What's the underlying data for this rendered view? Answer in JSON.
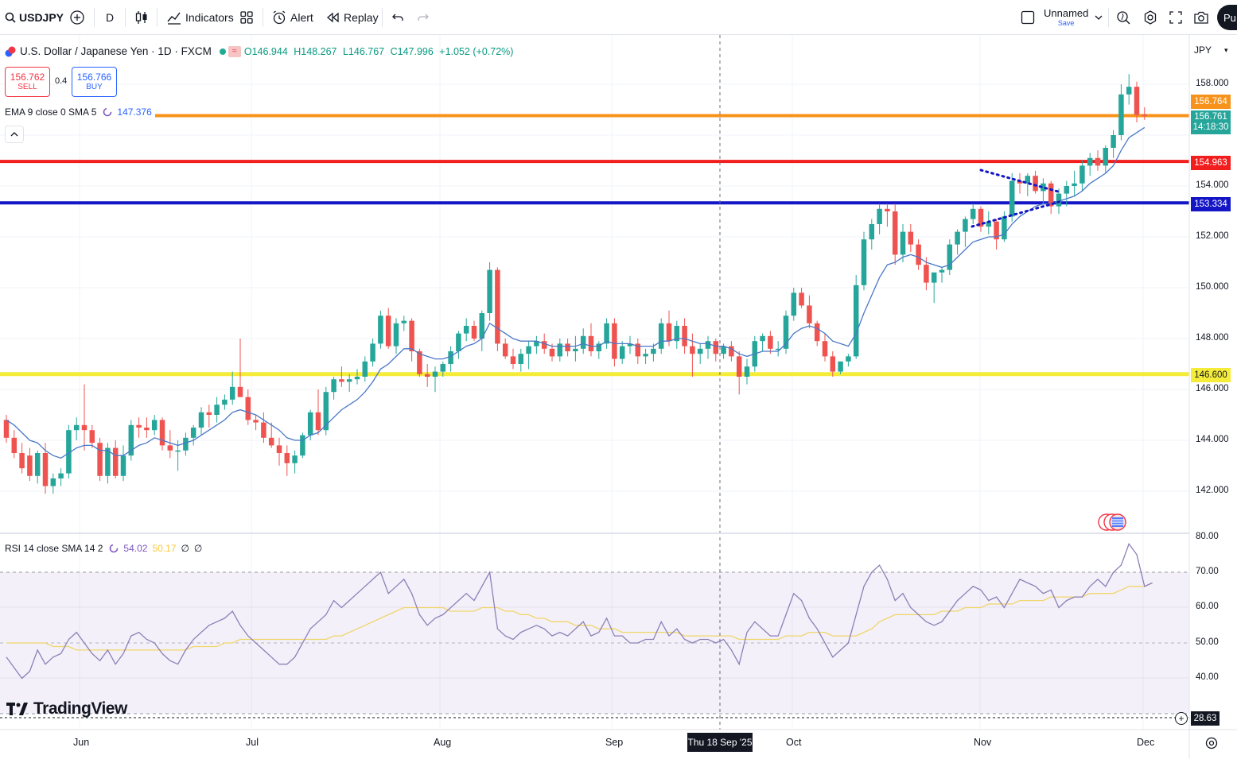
{
  "toolbar": {
    "symbol": "USDJPY",
    "interval": "D",
    "indicators": "Indicators",
    "alert": "Alert",
    "replay": "Replay",
    "layout_name": "Unnamed",
    "layout_save": "Save",
    "publish": "Pu"
  },
  "legend": {
    "title": "U.S. Dollar / Japanese Yen · 1D · FXCM",
    "badge": "≈",
    "open": "O146.944",
    "high": "H148.267",
    "low": "L146.767",
    "close": "C147.996",
    "change": "+1.052 (+0.72%)"
  },
  "trade": {
    "sell_price": "156.762",
    "sell_label": "SELL",
    "spread": "0.4",
    "buy_price": "156.766",
    "buy_label": "BUY"
  },
  "ema_legend": {
    "text": "EMA 9 close 0 SMA 5",
    "value": "147.376"
  },
  "rsi_legend": {
    "text": "RSI 14 close SMA 14 2",
    "rsi": "54.02",
    "sma": "50.17",
    "z1": "∅",
    "z2": "∅"
  },
  "watermark": "TradingView",
  "price_axis": {
    "currency": "JPY",
    "ticks": [
      "158.000",
      "154.000",
      "152.000",
      "150.000",
      "148.000",
      "146.000",
      "144.000",
      "142.000"
    ],
    "rsi_ticks": [
      "80.00",
      "70.00",
      "60.00",
      "50.00",
      "40.00"
    ],
    "tags": {
      "orange": "156.764",
      "current": "156.761",
      "countdown": "14:18:30",
      "red": "154.963",
      "blue": "153.334",
      "yellow": "146.600",
      "rsi_low": "28.63"
    }
  },
  "time_axis": {
    "labels": [
      "Jun",
      "Jul",
      "Aug",
      "Sep",
      "Oct",
      "Nov",
      "Dec"
    ],
    "crosshair": "Thu 18 Sep '25"
  },
  "colors": {
    "up": "#26a69a",
    "down": "#ef5350",
    "orange_line": "#f7931a",
    "red_line": "#f21d1d",
    "blue_line": "#1416c6",
    "yellow_line": "#f5ec3a",
    "ema": "#4a78c8",
    "rsi": "#8e7fb7",
    "rsi_sma": "#f0d66a"
  },
  "chart_data": {
    "type": "candlestick",
    "symbol": "USDJPY",
    "timeframe": "1D",
    "ylim": [
      141,
      159
    ],
    "horizontal_levels": [
      {
        "price": 156.764,
        "color": "orange"
      },
      {
        "price": 154.963,
        "color": "red"
      },
      {
        "price": 153.334,
        "color": "blue"
      },
      {
        "price": 146.6,
        "color": "yellow"
      }
    ],
    "x_labels": [
      "Jun",
      "Jul",
      "Aug",
      "Sep",
      "Oct",
      "Nov",
      "Dec"
    ],
    "candles": [
      [
        144.8,
        145.0,
        143.9,
        144.1
      ],
      [
        144.1,
        144.4,
        143.3,
        143.5
      ],
      [
        143.5,
        143.9,
        142.7,
        142.9
      ],
      [
        143.4,
        143.7,
        142.4,
        142.6
      ],
      [
        142.6,
        143.6,
        142.3,
        143.5
      ],
      [
        143.5,
        143.9,
        141.9,
        142.2
      ],
      [
        142.2,
        142.7,
        141.9,
        142.5
      ],
      [
        142.5,
        142.9,
        142.2,
        142.7
      ],
      [
        142.7,
        144.6,
        142.5,
        144.4
      ],
      [
        144.4,
        144.9,
        144.0,
        144.6
      ],
      [
        144.6,
        146.2,
        143.6,
        144.4
      ],
      [
        144.4,
        144.6,
        143.7,
        143.9
      ],
      [
        143.9,
        144.1,
        142.4,
        142.6
      ],
      [
        142.6,
        143.9,
        142.3,
        143.7
      ],
      [
        143.7,
        144.0,
        142.5,
        142.6
      ],
      [
        142.6,
        143.8,
        142.4,
        143.4
      ],
      [
        143.4,
        144.8,
        143.2,
        144.6
      ],
      [
        144.6,
        144.9,
        144.1,
        144.5
      ],
      [
        144.5,
        144.9,
        144.1,
        144.4
      ],
      [
        144.4,
        145.0,
        144.2,
        144.8
      ],
      [
        144.8,
        144.9,
        143.6,
        143.8
      ],
      [
        143.8,
        144.4,
        143.3,
        143.6
      ],
      [
        143.6,
        144.0,
        142.8,
        143.6
      ],
      [
        143.6,
        144.3,
        143.4,
        144.1
      ],
      [
        144.1,
        144.6,
        143.8,
        144.5
      ],
      [
        144.5,
        145.3,
        144.2,
        145.1
      ],
      [
        145.1,
        145.4,
        144.5,
        145.0
      ],
      [
        145.0,
        145.7,
        144.7,
        145.4
      ],
      [
        145.4,
        145.8,
        145.2,
        145.6
      ],
      [
        145.6,
        146.7,
        145.4,
        146.1
      ],
      [
        146.1,
        148.0,
        145.8,
        145.7
      ],
      [
        145.7,
        146.0,
        144.6,
        144.8
      ],
      [
        144.8,
        145.0,
        144.4,
        144.7
      ],
      [
        144.7,
        145.1,
        143.9,
        144.1
      ],
      [
        144.1,
        144.7,
        143.7,
        143.8
      ],
      [
        143.8,
        144.1,
        143.0,
        143.5
      ],
      [
        143.5,
        143.8,
        142.6,
        143.1
      ],
      [
        143.1,
        143.6,
        142.7,
        143.4
      ],
      [
        143.4,
        144.3,
        143.3,
        144.2
      ],
      [
        144.2,
        145.2,
        144.0,
        145.1
      ],
      [
        145.1,
        146.0,
        144.2,
        144.4
      ],
      [
        144.4,
        146.1,
        144.2,
        145.9
      ],
      [
        145.9,
        146.5,
        145.6,
        146.4
      ],
      [
        146.4,
        146.9,
        146.1,
        146.3
      ],
      [
        146.3,
        146.6,
        145.9,
        146.4
      ],
      [
        146.4,
        146.8,
        146.2,
        146.5
      ],
      [
        146.5,
        147.3,
        146.3,
        147.1
      ],
      [
        147.1,
        148.0,
        146.9,
        147.8
      ],
      [
        147.8,
        149.1,
        147.6,
        148.9
      ],
      [
        148.9,
        149.2,
        147.6,
        147.7
      ],
      [
        147.7,
        148.8,
        147.4,
        148.6
      ],
      [
        148.6,
        148.9,
        148.3,
        148.7
      ],
      [
        148.7,
        148.8,
        147.1,
        147.5
      ],
      [
        147.5,
        147.6,
        146.5,
        146.6
      ],
      [
        146.6,
        147.0,
        146.1,
        146.5
      ],
      [
        146.5,
        146.9,
        145.9,
        146.7
      ],
      [
        146.7,
        147.1,
        146.5,
        147.0
      ],
      [
        147.0,
        147.7,
        146.7,
        147.5
      ],
      [
        147.5,
        148.3,
        147.2,
        148.2
      ],
      [
        148.2,
        148.8,
        147.9,
        148.5
      ],
      [
        148.5,
        148.7,
        147.9,
        148.0
      ],
      [
        148.0,
        149.1,
        147.5,
        149.0
      ],
      [
        149.0,
        151.0,
        148.7,
        150.7
      ],
      [
        150.7,
        150.8,
        147.5,
        147.8
      ],
      [
        147.8,
        148.0,
        147.2,
        147.3
      ],
      [
        147.3,
        147.6,
        146.8,
        147.0
      ],
      [
        147.0,
        147.6,
        146.7,
        147.4
      ],
      [
        147.4,
        147.9,
        146.8,
        147.7
      ],
      [
        147.7,
        148.1,
        147.4,
        147.9
      ],
      [
        147.9,
        148.2,
        147.4,
        147.6
      ],
      [
        147.6,
        147.8,
        147.1,
        147.3
      ],
      [
        147.3,
        148.0,
        147.1,
        147.8
      ],
      [
        147.8,
        148.0,
        147.3,
        147.5
      ],
      [
        147.5,
        148.1,
        147.1,
        147.6
      ],
      [
        147.6,
        148.4,
        147.4,
        148.1
      ],
      [
        148.1,
        148.6,
        147.3,
        147.5
      ],
      [
        147.5,
        147.9,
        147.2,
        147.8
      ],
      [
        147.8,
        148.8,
        147.6,
        148.6
      ],
      [
        148.6,
        148.8,
        146.9,
        147.2
      ],
      [
        147.2,
        147.9,
        147.0,
        147.7
      ],
      [
        147.7,
        148.1,
        147.4,
        147.8
      ],
      [
        147.8,
        148.0,
        147.0,
        147.3
      ],
      [
        147.3,
        147.6,
        147.0,
        147.4
      ],
      [
        147.4,
        147.8,
        147.1,
        147.6
      ],
      [
        147.6,
        148.8,
        147.4,
        148.6
      ],
      [
        148.6,
        149.1,
        147.7,
        147.9
      ],
      [
        147.9,
        148.7,
        147.6,
        148.5
      ],
      [
        148.5,
        148.8,
        147.4,
        147.7
      ],
      [
        147.7,
        148.2,
        146.5,
        147.4
      ],
      [
        147.4,
        147.8,
        147.0,
        147.6
      ],
      [
        147.6,
        148.1,
        147.2,
        147.9
      ],
      [
        147.9,
        148.0,
        147.1,
        147.4
      ],
      [
        147.4,
        147.8,
        147.2,
        147.7
      ],
      [
        147.7,
        147.9,
        147.1,
        147.3
      ],
      [
        147.3,
        147.5,
        145.8,
        146.5
      ],
      [
        146.5,
        147.2,
        146.2,
        146.9
      ],
      [
        146.9,
        148.1,
        146.7,
        147.9
      ],
      [
        147.9,
        148.2,
        147.5,
        148.1
      ],
      [
        148.1,
        148.3,
        147.4,
        147.6
      ],
      [
        147.6,
        147.9,
        147.3,
        147.6
      ],
      [
        147.6,
        149.1,
        147.4,
        148.9
      ],
      [
        148.9,
        150.0,
        148.7,
        149.8
      ],
      [
        149.8,
        150.0,
        149.2,
        149.3
      ],
      [
        149.3,
        149.7,
        148.4,
        148.6
      ],
      [
        148.6,
        148.7,
        147.7,
        147.9
      ],
      [
        147.9,
        148.2,
        147.1,
        147.3
      ],
      [
        147.3,
        147.5,
        146.5,
        146.7
      ],
      [
        146.7,
        147.1,
        146.6,
        147.1
      ],
      [
        147.1,
        147.4,
        146.9,
        147.3
      ],
      [
        147.3,
        150.5,
        147.2,
        150.1
      ],
      [
        150.1,
        152.2,
        149.9,
        151.9
      ],
      [
        151.9,
        152.7,
        151.5,
        152.5
      ],
      [
        152.5,
        153.3,
        152.1,
        153.1
      ],
      [
        153.1,
        153.3,
        152.4,
        153.0
      ],
      [
        153.0,
        153.3,
        150.9,
        151.3
      ],
      [
        151.3,
        152.5,
        151.0,
        152.2
      ],
      [
        152.2,
        152.5,
        151.4,
        151.7
      ],
      [
        151.7,
        151.9,
        150.7,
        150.9
      ],
      [
        150.9,
        151.2,
        149.9,
        150.2
      ],
      [
        150.2,
        150.6,
        149.4,
        150.6
      ],
      [
        150.6,
        150.8,
        150.2,
        150.7
      ],
      [
        150.7,
        151.9,
        150.5,
        151.7
      ],
      [
        151.7,
        152.3,
        151.3,
        152.2
      ],
      [
        152.2,
        152.8,
        151.6,
        152.7
      ],
      [
        152.7,
        153.3,
        152.5,
        153.1
      ],
      [
        153.1,
        153.2,
        152.2,
        152.4
      ],
      [
        152.4,
        153.0,
        152.1,
        152.6
      ],
      [
        152.6,
        152.7,
        151.5,
        151.9
      ],
      [
        151.9,
        153.0,
        151.8,
        152.8
      ],
      [
        152.8,
        154.5,
        152.6,
        154.2
      ],
      [
        154.2,
        154.5,
        153.7,
        154.1
      ],
      [
        154.1,
        154.5,
        153.6,
        154.4
      ],
      [
        154.4,
        154.6,
        153.7,
        153.8
      ],
      [
        153.8,
        154.3,
        153.3,
        154.1
      ],
      [
        154.1,
        154.2,
        152.9,
        153.2
      ],
      [
        153.2,
        153.9,
        152.9,
        153.7
      ],
      [
        153.7,
        154.2,
        153.2,
        154.0
      ],
      [
        154.0,
        154.6,
        153.6,
        154.1
      ],
      [
        154.1,
        155.0,
        153.8,
        154.8
      ],
      [
        154.8,
        155.3,
        154.4,
        155.1
      ],
      [
        155.1,
        155.4,
        154.6,
        154.8
      ],
      [
        154.8,
        155.6,
        154.5,
        155.5
      ],
      [
        155.5,
        156.2,
        155.1,
        156.0
      ],
      [
        156.0,
        158.0,
        155.8,
        157.6
      ],
      [
        157.6,
        158.4,
        157.2,
        157.9
      ],
      [
        157.9,
        158.1,
        156.5,
        156.8
      ],
      [
        156.8,
        157.1,
        156.6,
        156.761
      ]
    ],
    "ema9": [
      144.8,
      144.6,
      144.3,
      144.0,
      143.9,
      143.6,
      143.4,
      143.3,
      143.5,
      143.7,
      143.8,
      143.8,
      143.6,
      143.6,
      143.4,
      143.4,
      143.6,
      143.8,
      143.9,
      144.1,
      144.0,
      143.9,
      143.8,
      143.9,
      144.0,
      144.2,
      144.4,
      144.6,
      144.8,
      145.1,
      145.2,
      145.1,
      145.0,
      144.8,
      144.6,
      144.4,
      144.1,
      144.0,
      144.0,
      144.2,
      144.3,
      144.6,
      144.9,
      145.2,
      145.4,
      145.6,
      145.9,
      146.3,
      146.8,
      147.0,
      147.3,
      147.6,
      147.6,
      147.4,
      147.3,
      147.2,
      147.2,
      147.3,
      147.5,
      147.7,
      147.8,
      148.0,
      148.6,
      148.4,
      148.2,
      148.0,
      147.9,
      147.9,
      147.9,
      147.8,
      147.7,
      147.7,
      147.7,
      147.7,
      147.8,
      147.7,
      147.7,
      147.9,
      147.8,
      147.8,
      147.8,
      147.7,
      147.7,
      147.7,
      147.9,
      147.9,
      148.0,
      148.0,
      147.9,
      147.8,
      147.8,
      147.7,
      147.7,
      147.6,
      147.4,
      147.3,
      147.4,
      147.5,
      147.5,
      147.5,
      147.8,
      148.2,
      148.4,
      148.5,
      148.4,
      148.2,
      147.9,
      147.8,
      147.7,
      148.2,
      149.0,
      149.7,
      150.4,
      150.9,
      151.0,
      151.2,
      151.3,
      151.2,
      151.0,
      150.9,
      150.8,
      150.9,
      151.2,
      151.5,
      151.8,
      151.9,
      152.0,
      152.0,
      152.1,
      152.5,
      152.8,
      153.0,
      153.2,
      153.3,
      153.3,
      153.4,
      153.5,
      153.6,
      153.8,
      154.1,
      154.3,
      154.5,
      154.8,
      155.4,
      155.9,
      156.1,
      156.3
    ],
    "rsi": [
      46,
      43,
      40,
      42,
      48,
      44,
      46,
      47,
      51,
      53,
      50,
      47,
      45,
      48,
      44,
      47,
      52,
      53,
      51,
      50,
      47,
      45,
      44,
      48,
      51,
      53,
      55,
      56,
      57,
      59,
      55,
      52,
      50,
      48,
      46,
      44,
      44,
      46,
      50,
      54,
      56,
      58,
      62,
      60,
      62,
      64,
      66,
      68,
      70,
      64,
      66,
      68,
      64,
      58,
      55,
      57,
      58,
      60,
      62,
      64,
      62,
      66,
      70,
      54,
      52,
      51,
      53,
      54,
      55,
      54,
      52,
      53,
      52,
      54,
      56,
      52,
      53,
      57,
      52,
      52,
      50,
      50,
      51,
      51,
      56,
      52,
      54,
      51,
      50,
      51,
      51,
      50,
      51,
      48,
      44,
      53,
      56,
      54,
      52,
      52,
      58,
      64,
      62,
      57,
      54,
      50,
      46,
      48,
      50,
      58,
      66,
      70,
      72,
      68,
      62,
      64,
      60,
      58,
      56,
      55,
      56,
      59,
      62,
      64,
      66,
      65,
      62,
      63,
      60,
      64,
      68,
      67,
      66,
      64,
      65,
      60,
      62,
      63,
      63,
      66,
      68,
      66,
      70,
      72,
      78,
      75,
      66,
      67
    ],
    "rsi_sma": [
      50,
      50,
      50,
      50,
      50,
      50,
      49,
      49,
      49,
      48,
      48,
      48,
      48,
      48,
      48,
      48,
      48,
      48,
      48,
      48,
      48,
      48,
      48,
      48,
      49,
      49,
      49,
      49,
      50,
      50,
      51,
      51,
      51,
      51,
      51,
      51,
      51,
      51,
      51,
      51,
      51,
      51,
      52,
      52,
      53,
      54,
      55,
      56,
      57,
      58,
      59,
      60,
      60,
      60,
      60,
      60,
      60,
      59,
      59,
      59,
      59,
      60,
      60,
      60,
      59,
      59,
      58,
      58,
      57,
      57,
      56,
      56,
      56,
      55,
      55,
      55,
      54,
      54,
      54,
      53,
      53,
      53,
      53,
      53,
      53,
      53,
      53,
      52,
      52,
      52,
      52,
      52,
      52,
      52,
      51,
      51,
      51,
      51,
      51,
      51,
      52,
      52,
      52,
      53,
      53,
      53,
      52,
      52,
      52,
      52,
      53,
      54,
      56,
      57,
      58,
      58,
      58,
      58,
      58,
      58,
      59,
      59,
      59,
      60,
      60,
      60,
      61,
      61,
      61,
      61,
      62,
      62,
      62,
      62,
      63,
      63,
      63,
      63,
      63,
      64,
      64,
      64,
      64,
      65,
      66,
      66,
      66,
      67
    ]
  }
}
